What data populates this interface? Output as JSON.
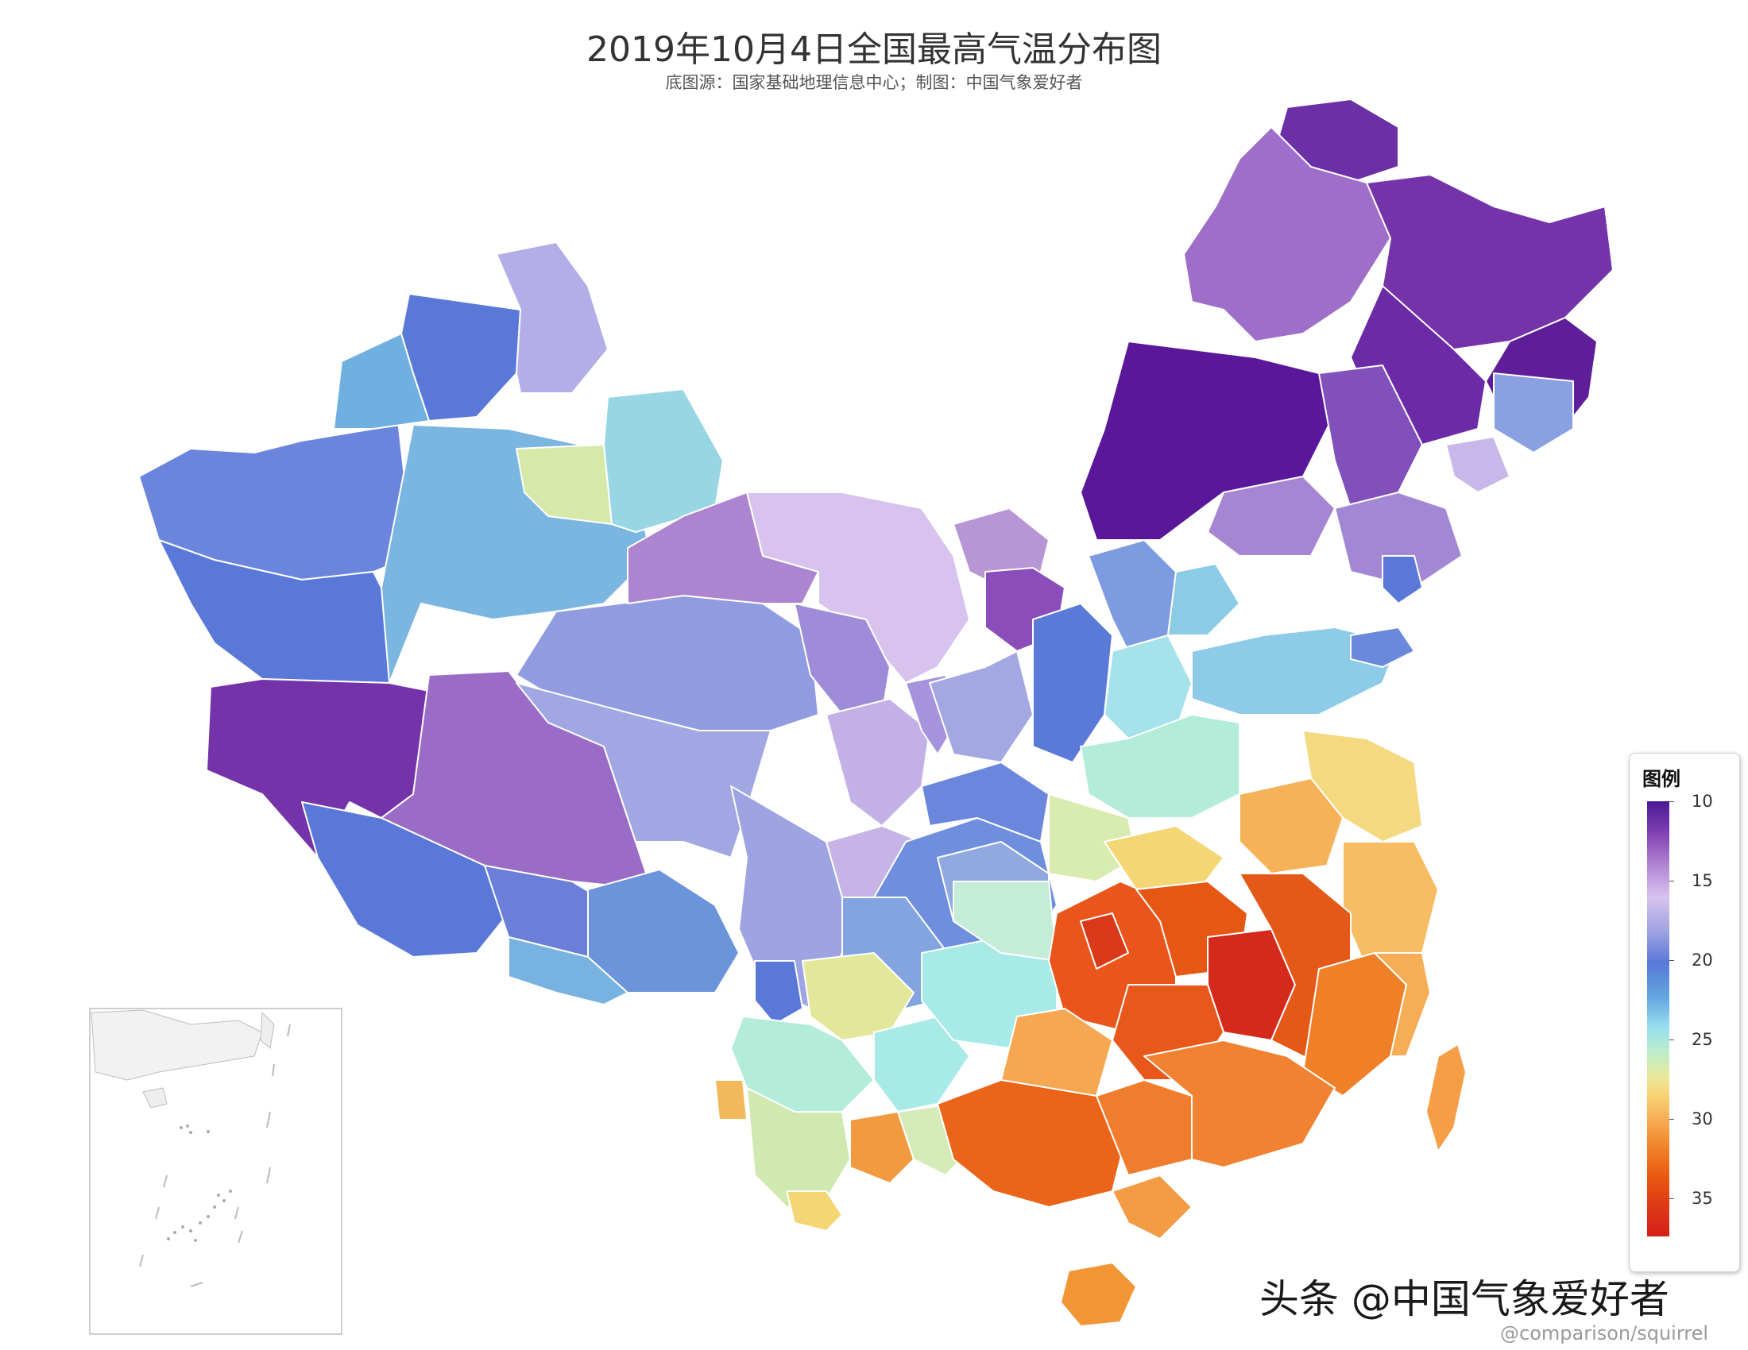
{
  "title": "2019年10月4日全国最高气温分布图",
  "subtitle": "底图源：国家基础地理信息中心；制图：中国气象爱好者",
  "legend": {
    "title": "图例",
    "ticks": [
      "10",
      "15",
      "20",
      "25",
      "30",
      "35"
    ]
  },
  "watermark": "头条 @中国气象爱好者",
  "credit": "@comparison/squirrel",
  "colors": {
    "t10": "#4b1895",
    "t12": "#7e3fb0",
    "t14": "#b388d6",
    "t15": "#d7c3ee",
    "t17": "#9ea3e2",
    "t20": "#5a78d8",
    "t22": "#62a6e0",
    "t24": "#98dff0",
    "t26": "#b8ecd0",
    "t28": "#e6ea9c",
    "t30": "#f8d77a",
    "t32": "#f6ae55",
    "t34": "#f08028",
    "t36": "#ea5a12",
    "t38": "#d41f1a"
  }
}
